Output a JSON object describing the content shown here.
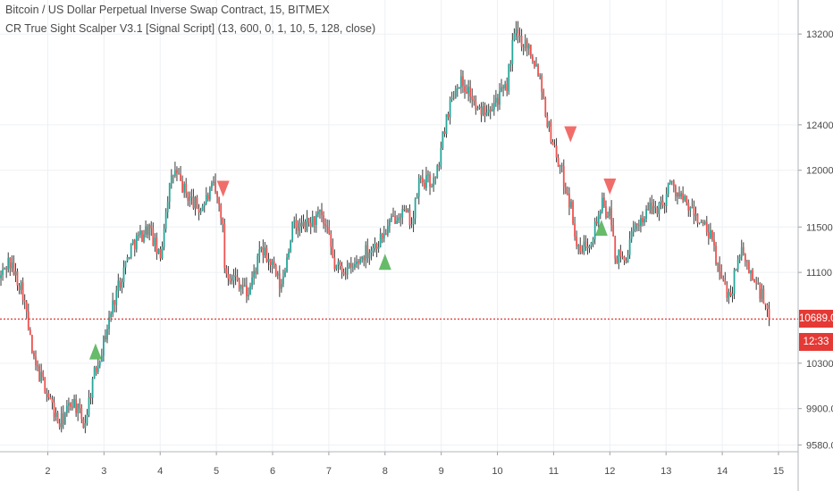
{
  "legend": {
    "title": "Bitcoin / US Dollar Perpetual Inverse Swap Contract, 15, BITMEX",
    "indicator": "CR True Sight Scalper V3.1 [Signal Script] (13, 600, 0, 1, 10, 5, 128, close)"
  },
  "price_tag": {
    "value": "10689.0",
    "countdown": "12:33"
  },
  "colors": {
    "up": "#26a69a",
    "down": "#ef5350",
    "wick": "#3a3a3a",
    "grid": "#eef0f4",
    "price_line": "#e53935",
    "buy": "#4caf50",
    "sell": "#ef5350"
  },
  "chart_data": {
    "type": "candlestick",
    "symbol": "Bitcoin / US Dollar Perpetual Inverse Swap Contract",
    "interval": "15",
    "exchange": "BITMEX",
    "y_ticks": [
      "13200.0",
      "12400.0",
      "12000.0",
      "11500.0",
      "11100.0",
      "10300.0",
      "9900.0",
      "9580.0"
    ],
    "x_ticks": [
      "2",
      "3",
      "4",
      "5",
      "6",
      "7",
      "8",
      "9",
      "10",
      "11",
      "12",
      "13",
      "14",
      "15"
    ],
    "ylim": [
      9520,
      13500
    ],
    "xlim": [
      1.15,
      15.35
    ],
    "last_price": 10689.0,
    "path": [
      [
        1.15,
        11050
      ],
      [
        1.3,
        11200
      ],
      [
        1.55,
        10950
      ],
      [
        1.75,
        10300
      ],
      [
        1.95,
        10100
      ],
      [
        2.2,
        9750
      ],
      [
        2.45,
        9980
      ],
      [
        2.65,
        9750
      ],
      [
        2.8,
        10150
      ],
      [
        3.0,
        10500
      ],
      [
        3.2,
        10900
      ],
      [
        3.5,
        11350
      ],
      [
        3.8,
        11500
      ],
      [
        4.0,
        11200
      ],
      [
        4.12,
        11750
      ],
      [
        4.25,
        12000
      ],
      [
        4.45,
        11800
      ],
      [
        4.7,
        11650
      ],
      [
        4.95,
        11850
      ],
      [
        5.1,
        11600
      ],
      [
        5.15,
        11120
      ],
      [
        5.45,
        11000
      ],
      [
        5.55,
        10900
      ],
      [
        5.8,
        11300
      ],
      [
        6.0,
        11150
      ],
      [
        6.15,
        10950
      ],
      [
        6.35,
        11500
      ],
      [
        6.55,
        11500
      ],
      [
        6.85,
        11600
      ],
      [
        7.0,
        11400
      ],
      [
        7.1,
        11150
      ],
      [
        7.4,
        11120
      ],
      [
        7.65,
        11280
      ],
      [
        7.85,
        11350
      ],
      [
        8.0,
        11450
      ],
      [
        8.25,
        11650
      ],
      [
        8.5,
        11550
      ],
      [
        8.6,
        11900
      ],
      [
        8.9,
        11900
      ],
      [
        9.1,
        12500
      ],
      [
        9.3,
        12800
      ],
      [
        9.5,
        12700
      ],
      [
        9.65,
        12500
      ],
      [
        9.9,
        12600
      ],
      [
        10.15,
        12700
      ],
      [
        10.3,
        13200
      ],
      [
        10.55,
        13100
      ],
      [
        10.75,
        12850
      ],
      [
        10.9,
        12400
      ],
      [
        11.1,
        12050
      ],
      [
        11.3,
        11700
      ],
      [
        11.45,
        11250
      ],
      [
        11.7,
        11450
      ],
      [
        11.85,
        11700
      ],
      [
        12.0,
        11600
      ],
      [
        12.1,
        11250
      ],
      [
        12.25,
        11200
      ],
      [
        12.5,
        11550
      ],
      [
        12.7,
        11650
      ],
      [
        12.95,
        11700
      ],
      [
        13.05,
        11900
      ],
      [
        13.35,
        11700
      ],
      [
        13.6,
        11550
      ],
      [
        13.8,
        11400
      ],
      [
        14.0,
        11000
      ],
      [
        14.15,
        10900
      ],
      [
        14.3,
        11300
      ],
      [
        14.55,
        11050
      ],
      [
        14.7,
        10900
      ],
      [
        14.85,
        10689
      ]
    ],
    "signals": [
      {
        "type": "buy",
        "x": 2.85,
        "price": 10380
      },
      {
        "type": "sell",
        "x": 5.12,
        "price": 11860
      },
      {
        "type": "buy",
        "x": 8.0,
        "price": 11170
      },
      {
        "type": "sell",
        "x": 11.3,
        "price": 12340
      },
      {
        "type": "buy",
        "x": 11.85,
        "price": 11470
      },
      {
        "type": "sell",
        "x": 12.0,
        "price": 11880
      }
    ]
  }
}
